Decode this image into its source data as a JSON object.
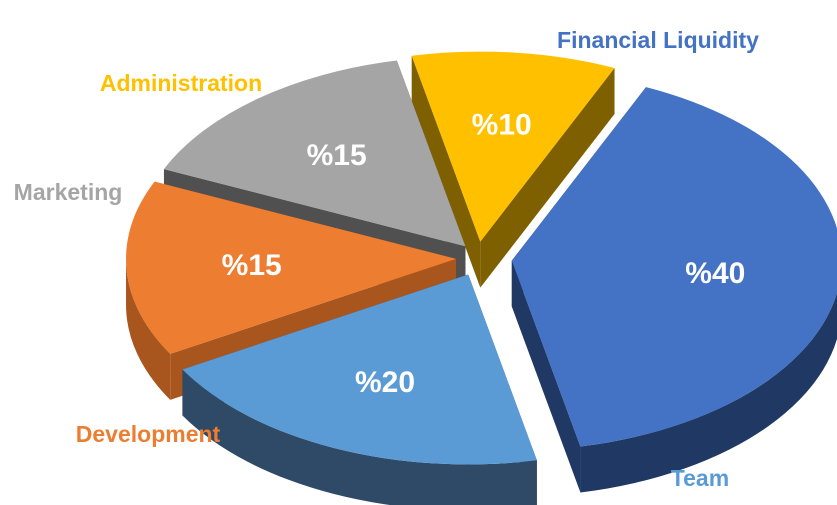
{
  "chart_data": {
    "type": "pie",
    "style": "3d-exploded",
    "slices": [
      {
        "category": "Financial Liquidity",
        "value": 40,
        "label": "%40",
        "color": "#4472C4",
        "side_color": "#1F3864"
      },
      {
        "category": "Team",
        "value": 20,
        "label": "%20",
        "color": "#5B9BD5",
        "side_color": "#2E4A66"
      },
      {
        "category": "Development",
        "value": 15,
        "label": "%15",
        "color": "#ED7D31",
        "side_color": "#A9561E"
      },
      {
        "category": "Marketing",
        "value": 15,
        "label": "%15",
        "color": "#A5A5A5",
        "side_color": "#505050"
      },
      {
        "category": "Administration",
        "value": 10,
        "label": "%10",
        "color": "#FFC000",
        "side_color": "#7F6000"
      }
    ],
    "legend": "labels-outside-slices"
  }
}
